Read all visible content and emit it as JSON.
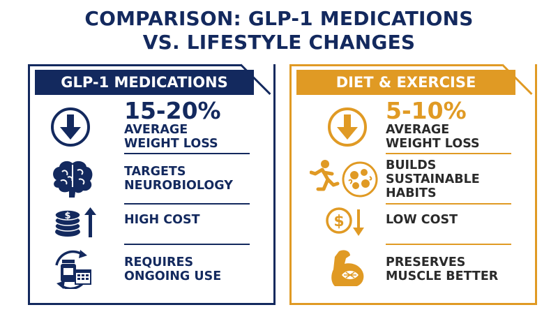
{
  "title": {
    "line1": "COMPARISON: GLP-1 MEDICATIONS",
    "line2": "VS. LIFESTYLE CHANGES"
  },
  "colors": {
    "navy": "#13295e",
    "orange": "#e09a24"
  },
  "left_panel": {
    "header": "GLP-1 MEDICATIONS",
    "stat": "15-20%",
    "stat_line1": "AVERAGE",
    "stat_line2": "WEIGHT LOSS",
    "item2_line1": "TARGETS",
    "item2_line2": "NEUROBIOLOGY",
    "item3": "HIGH COST",
    "item4_line1": "REQUIRES",
    "item4_line2": "ONGOING USE",
    "icons": [
      "down-arrow-circle-icon",
      "brain-icon",
      "coins-up-arrow-icon",
      "pill-bottle-calendar-icon"
    ]
  },
  "right_panel": {
    "header": "DIET & EXERCISE",
    "stat": "5-10%",
    "stat_line1": "AVERAGE",
    "stat_line2": "WEIGHT LOSS",
    "item2_line1": "BUILDS",
    "item2_line2": "SUSTAINABLE",
    "item2_line3": "HABITS",
    "item3": "LOW COST",
    "item4_line1": "PRESERVES",
    "item4_line2": "MUSCLE BETTER",
    "icons": [
      "down-arrow-circle-icon",
      "runner-food-bowl-icon",
      "dollar-down-arrow-icon",
      "flexed-arm-icon"
    ]
  }
}
